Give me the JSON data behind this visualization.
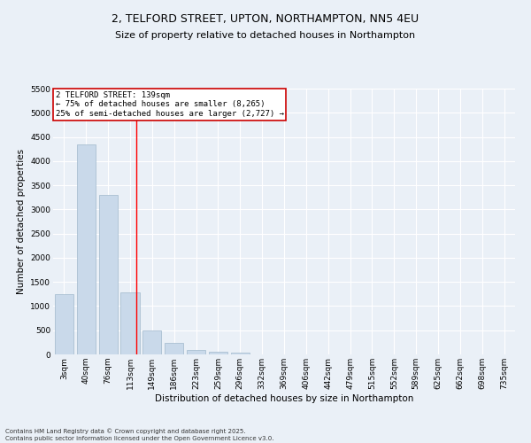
{
  "title": "2, TELFORD STREET, UPTON, NORTHAMPTON, NN5 4EU",
  "subtitle": "Size of property relative to detached houses in Northampton",
  "xlabel": "Distribution of detached houses by size in Northampton",
  "ylabel": "Number of detached properties",
  "categories": [
    "3sqm",
    "40sqm",
    "76sqm",
    "113sqm",
    "149sqm",
    "186sqm",
    "223sqm",
    "259sqm",
    "296sqm",
    "332sqm",
    "369sqm",
    "406sqm",
    "442sqm",
    "479sqm",
    "515sqm",
    "552sqm",
    "589sqm",
    "625sqm",
    "662sqm",
    "698sqm",
    "735sqm"
  ],
  "values": [
    1250,
    4350,
    3300,
    1280,
    500,
    230,
    90,
    60,
    40,
    5,
    0,
    0,
    0,
    0,
    0,
    0,
    0,
    0,
    0,
    0,
    0
  ],
  "bar_color": "#c9d9ea",
  "bar_edge_color": "#a0b8cc",
  "background_color": "#eaf0f7",
  "grid_color": "#ffffff",
  "red_line_x": 3.27,
  "annotation_text": "2 TELFORD STREET: 139sqm\n← 75% of detached houses are smaller (8,265)\n25% of semi-detached houses are larger (2,727) →",
  "annotation_box_color": "#ffffff",
  "annotation_border_color": "#cc0000",
  "ylim": [
    0,
    5500
  ],
  "yticks": [
    0,
    500,
    1000,
    1500,
    2000,
    2500,
    3000,
    3500,
    4000,
    4500,
    5000,
    5500
  ],
  "footer_line1": "Contains HM Land Registry data © Crown copyright and database right 2025.",
  "footer_line2": "Contains public sector information licensed under the Open Government Licence v3.0.",
  "title_fontsize": 9,
  "subtitle_fontsize": 8,
  "axis_label_fontsize": 7.5,
  "tick_fontsize": 6.5,
  "annotation_fontsize": 6.5,
  "footer_fontsize": 5
}
